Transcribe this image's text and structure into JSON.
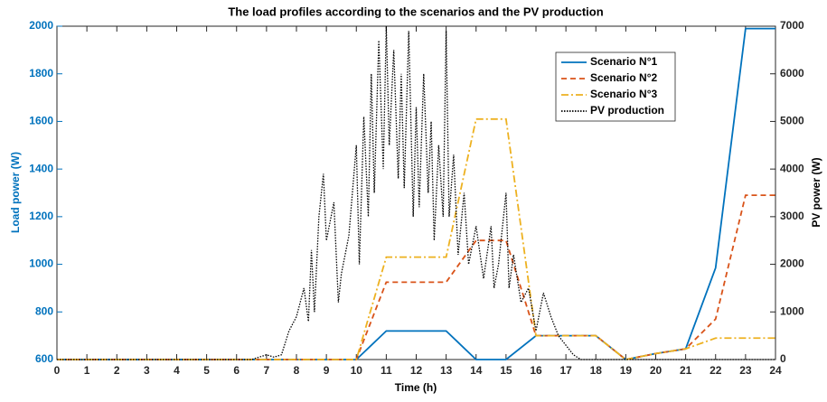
{
  "chart_data": {
    "type": "line",
    "title": "The load profiles according to the scenarios and the PV production",
    "xlabel": "Time (h)",
    "ylabel": "Load power (W)",
    "y2label": "PV power (W)",
    "xlim": [
      0,
      24
    ],
    "xticks": [
      0,
      1,
      2,
      3,
      4,
      5,
      6,
      7,
      8,
      9,
      10,
      11,
      12,
      13,
      14,
      15,
      16,
      17,
      18,
      19,
      20,
      21,
      22,
      23,
      24
    ],
    "ylim": [
      600,
      2000
    ],
    "yticks": [
      600,
      800,
      1000,
      1200,
      1400,
      1600,
      1800,
      2000
    ],
    "y2lim": [
      0,
      7000
    ],
    "y2ticks": [
      0,
      1000,
      2000,
      3000,
      4000,
      5000,
      6000,
      7000
    ],
    "ylabel_color": "#0072bd",
    "legend": "northeast",
    "series": [
      {
        "name": "Scenario N°1",
        "color": "#0072bd",
        "dash": "solid",
        "x": [
          0,
          10,
          11,
          13,
          14,
          15,
          16,
          18,
          19,
          20,
          21,
          22,
          23,
          24
        ],
        "values": [
          600,
          600,
          720,
          720,
          600,
          600,
          700,
          700,
          600,
          625,
          645,
          985,
          1990,
          1990
        ]
      },
      {
        "name": "Scenario N°2",
        "color": "#d95319",
        "dash": "dashed",
        "x": [
          0,
          10,
          11,
          13,
          14,
          15,
          16,
          18,
          19,
          20,
          21,
          22,
          23,
          24
        ],
        "values": [
          600,
          600,
          925,
          925,
          1100,
          1100,
          700,
          700,
          600,
          625,
          645,
          770,
          1290,
          1290
        ]
      },
      {
        "name": "Scenario N°3",
        "color": "#edb120",
        "dash": "dashdot",
        "x": [
          0,
          10,
          11,
          13,
          14,
          15,
          16,
          18,
          19,
          20,
          21,
          22,
          23,
          24
        ],
        "values": [
          600,
          600,
          1030,
          1030,
          1610,
          1610,
          700,
          700,
          600,
          625,
          645,
          690,
          690,
          690
        ]
      },
      {
        "name": "PV production",
        "color": "#000000",
        "dash": "dotted",
        "axis": "y2",
        "x": [
          0,
          6.5,
          7,
          7.25,
          7.5,
          7.75,
          8,
          8.25,
          8.4,
          8.5,
          8.6,
          8.75,
          8.9,
          9,
          9.25,
          9.4,
          9.5,
          9.75,
          10,
          10.1,
          10.25,
          10.4,
          10.5,
          10.6,
          10.75,
          10.9,
          11,
          11.1,
          11.25,
          11.4,
          11.5,
          11.6,
          11.75,
          11.9,
          12,
          12.1,
          12.25,
          12.4,
          12.5,
          12.6,
          12.75,
          12.9,
          13,
          13.1,
          13.25,
          13.4,
          13.6,
          13.75,
          14,
          14.25,
          14.5,
          14.6,
          14.75,
          15,
          15.1,
          15.25,
          15.5,
          15.75,
          16,
          16.25,
          16.5,
          16.75,
          17,
          17.25,
          17.5,
          24
        ],
        "values": [
          0,
          0,
          100,
          50,
          100,
          600,
          900,
          1500,
          800,
          2300,
          1000,
          3000,
          3900,
          2500,
          3300,
          1200,
          1800,
          2600,
          4500,
          2000,
          5100,
          3000,
          6000,
          3500,
          6700,
          4000,
          7000,
          4500,
          6500,
          3800,
          6000,
          3600,
          6900,
          3000,
          5300,
          3200,
          6000,
          3500,
          5000,
          2500,
          4500,
          3000,
          6900,
          3000,
          4300,
          2200,
          3500,
          2000,
          2800,
          1700,
          2800,
          1500,
          2000,
          3500,
          1500,
          2200,
          1200,
          1500,
          600,
          1400,
          900,
          500,
          300,
          100,
          0,
          0
        ]
      }
    ]
  }
}
